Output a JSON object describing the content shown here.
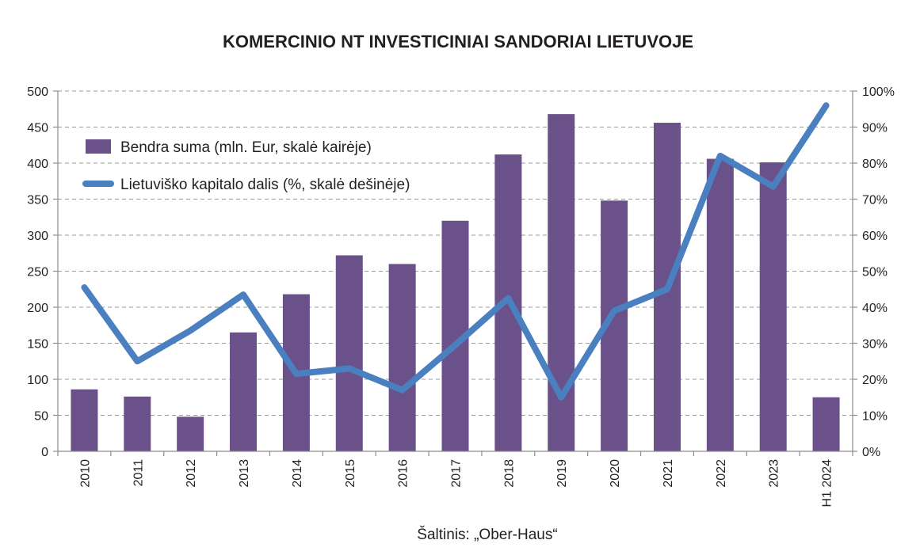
{
  "chart_data": {
    "type": "bar+line",
    "title": "KOMERCINIO NT INVESTICINIAI SANDORIAI LIETUVOJE",
    "categories": [
      "2010",
      "2011",
      "2012",
      "2013",
      "2014",
      "2015",
      "2016",
      "2017",
      "2018",
      "2019",
      "2020",
      "2021",
      "2022",
      "2023",
      "H1 2024"
    ],
    "series": [
      {
        "name": "Bendra suma (mln. Eur, skalė kairėje)",
        "type": "bar",
        "axis": "left",
        "color": "#6a5189",
        "values": [
          86,
          76,
          48,
          165,
          218,
          272,
          260,
          320,
          412,
          468,
          348,
          456,
          406,
          401,
          75
        ]
      },
      {
        "name": "Lietuviško kapitalo dalis (%, skalė dešinėje)",
        "type": "line",
        "axis": "right",
        "color": "#4a7fc0",
        "values": [
          45.5,
          25,
          33.5,
          43.5,
          21.5,
          23,
          17,
          29.5,
          42.5,
          15,
          39,
          45,
          82,
          73.5,
          96
        ]
      }
    ],
    "y_left": {
      "min": 0,
      "max": 500,
      "step": 50,
      "ticks": [
        "0",
        "50",
        "100",
        "150",
        "200",
        "250",
        "300",
        "350",
        "400",
        "450",
        "500"
      ]
    },
    "y_right": {
      "min": 0,
      "max": 100,
      "step": 10,
      "ticks": [
        "0%",
        "10%",
        "20%",
        "30%",
        "40%",
        "50%",
        "60%",
        "70%",
        "80%",
        "90%",
        "100%"
      ]
    },
    "grid": true,
    "legend_position": "top-left",
    "source": "Šaltinis: „Ober-Haus“"
  }
}
